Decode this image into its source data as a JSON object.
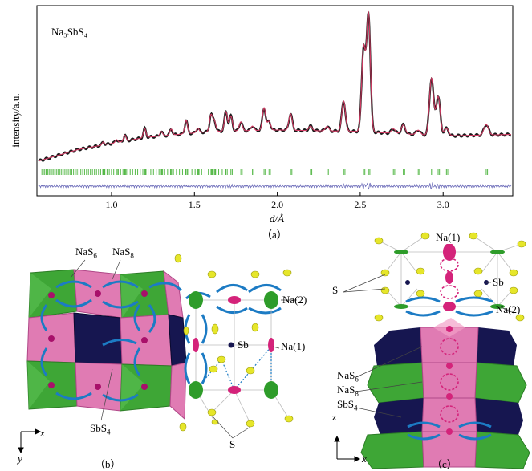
{
  "figure": {
    "caption_a": "（a）",
    "caption_b": "（b）",
    "caption_c": "（c）"
  },
  "panel_a": {
    "chart_data": {
      "type": "line",
      "title": "Na₃SbS₄",
      "xlabel": "d/Å",
      "ylabel": "intensity/a.u.",
      "xlim": [
        0.55,
        3.42
      ],
      "ylim": [
        0,
        100
      ],
      "x_ticks": [
        "1.0",
        "1.5",
        "2.0",
        "2.5",
        "3.0"
      ],
      "x_tick_values": [
        1.0,
        1.5,
        2.0,
        2.5,
        3.0
      ],
      "background": [
        [
          0.55,
          2
        ],
        [
          0.8,
          10
        ],
        [
          1.2,
          18
        ],
        [
          1.6,
          22
        ],
        [
          2.0,
          23
        ],
        [
          2.5,
          22
        ],
        [
          3.0,
          19
        ],
        [
          3.4,
          20
        ]
      ],
      "peaks": [
        {
          "d": 0.95,
          "h": 2
        },
        {
          "d": 1.03,
          "h": 2
        },
        {
          "d": 1.08,
          "h": 4
        },
        {
          "d": 1.2,
          "h": 6
        },
        {
          "d": 1.3,
          "h": 3
        },
        {
          "d": 1.36,
          "h": 4
        },
        {
          "d": 1.45,
          "h": 9
        },
        {
          "d": 1.52,
          "h": 3
        },
        {
          "d": 1.6,
          "h": 11
        },
        {
          "d": 1.62,
          "h": 7
        },
        {
          "d": 1.69,
          "h": 13
        },
        {
          "d": 1.72,
          "h": 10
        },
        {
          "d": 1.78,
          "h": 6
        },
        {
          "d": 1.85,
          "h": 3
        },
        {
          "d": 1.92,
          "h": 15
        },
        {
          "d": 1.95,
          "h": 6
        },
        {
          "d": 2.08,
          "h": 11
        },
        {
          "d": 2.2,
          "h": 3
        },
        {
          "d": 2.3,
          "h": 3
        },
        {
          "d": 2.4,
          "h": 20
        },
        {
          "d": 2.52,
          "h": 55
        },
        {
          "d": 2.55,
          "h": 78
        },
        {
          "d": 2.7,
          "h": 3
        },
        {
          "d": 2.76,
          "h": 6
        },
        {
          "d": 2.85,
          "h": 3
        },
        {
          "d": 2.93,
          "h": 38
        },
        {
          "d": 2.97,
          "h": 26
        },
        {
          "d": 3.02,
          "h": 5
        },
        {
          "d": 3.26,
          "h": 7
        }
      ],
      "series": [
        {
          "name": "observed",
          "color": "#1a1a1a"
        },
        {
          "name": "calculated",
          "color": "#c8345a"
        },
        {
          "name": "Bragg positions",
          "color": "#55b847"
        },
        {
          "name": "difference",
          "color": "#6a6ab8"
        }
      ]
    }
  },
  "panel_b": {
    "labels": {
      "nas6": "NaS",
      "nas6_sub": "6",
      "nas8": "NaS",
      "nas8_sub": "8",
      "sbs4": "SbS",
      "sbs4_sub": "4",
      "sb": "Sb",
      "na1": "Na(1)",
      "na2": "Na(2)",
      "s": "S",
      "axis_x": "x",
      "axis_y": "y"
    },
    "colors": {
      "nas6": "#3ea636",
      "nas8": "#e07bb3",
      "sbs4": "#161650",
      "sulfur": "#e6e62a",
      "na": "#d4237a",
      "path": "#1c7bc4"
    }
  },
  "panel_c": {
    "labels": {
      "na1": "Na(1)",
      "sb": "Sb",
      "s": "S",
      "na2": "Na(2)",
      "nas6": "NaS",
      "nas6_sub": "6",
      "nas8": "NaS",
      "nas8_sub": "8",
      "sbs4": "SbS",
      "sbs4_sub": "4",
      "axis_z": "z",
      "axis_x": "x"
    }
  }
}
